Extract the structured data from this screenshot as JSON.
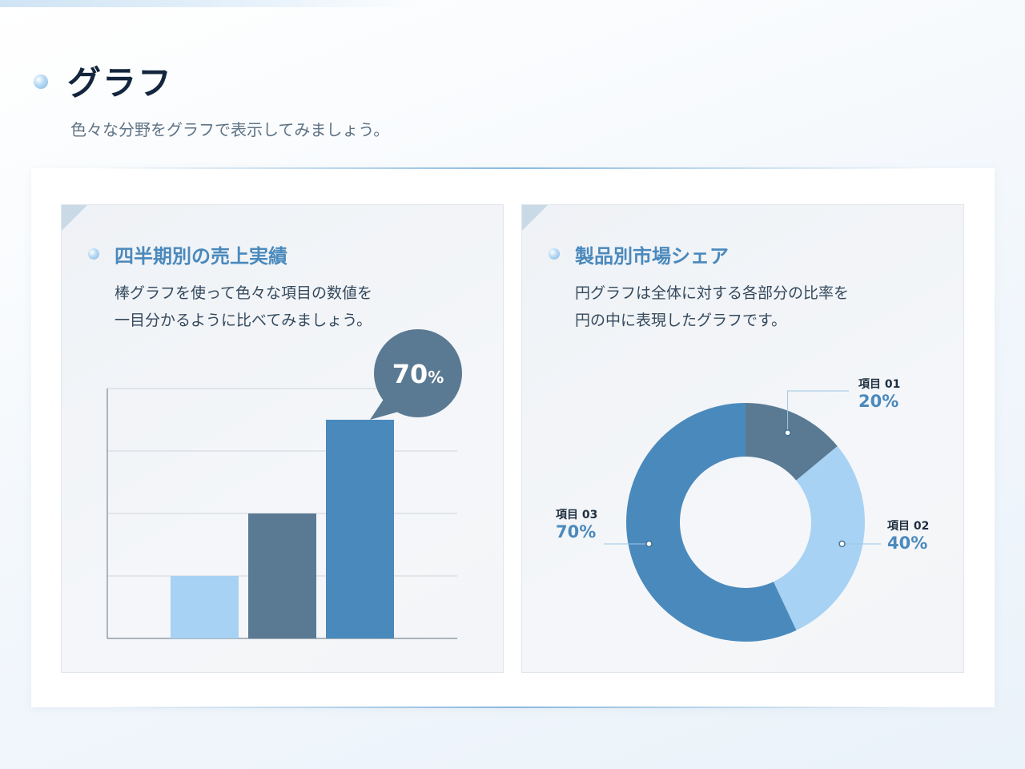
{
  "header": {
    "title": "グラフ",
    "subtitle": "色々な分野をグラフで表示してみましょう。"
  },
  "panels": {
    "bar": {
      "title": "四半期別の売上実績",
      "desc_lines": [
        "棒グラフを使って色々な項目の数値を",
        "一目分かるように比べてみましょう。"
      ]
    },
    "donut": {
      "title": "製品別市場シェア",
      "desc_lines": [
        "円グラフは全体に対する各部分の比率を",
        "円の中に表現したグラフです。"
      ]
    }
  },
  "colors": {
    "light_blue": "#a7d2f3",
    "slate_blue": "#5a7a93",
    "mid_blue": "#4a89bc",
    "bubble": "#5a7a93",
    "title_blue": "#4a89bc"
  },
  "chart_data": [
    {
      "type": "bar",
      "categories": [
        "",
        "",
        ""
      ],
      "values": [
        20,
        40,
        70
      ],
      "ylim": [
        0,
        80
      ],
      "grid": true,
      "callout": {
        "value": "70",
        "unit": "%"
      },
      "bar_colors": [
        "#a7d2f3",
        "#5a7a93",
        "#4a89bc"
      ]
    },
    {
      "type": "pie",
      "variant": "donut",
      "slices": [
        {
          "label": "項目 01",
          "value": "20%",
          "share": 14,
          "color": "#5a7a93"
        },
        {
          "label": "項目 02",
          "value": "40%",
          "share": 29,
          "color": "#a7d2f3"
        },
        {
          "label": "項目 03",
          "value": "70%",
          "share": 57,
          "color": "#4a89bc"
        }
      ]
    }
  ]
}
